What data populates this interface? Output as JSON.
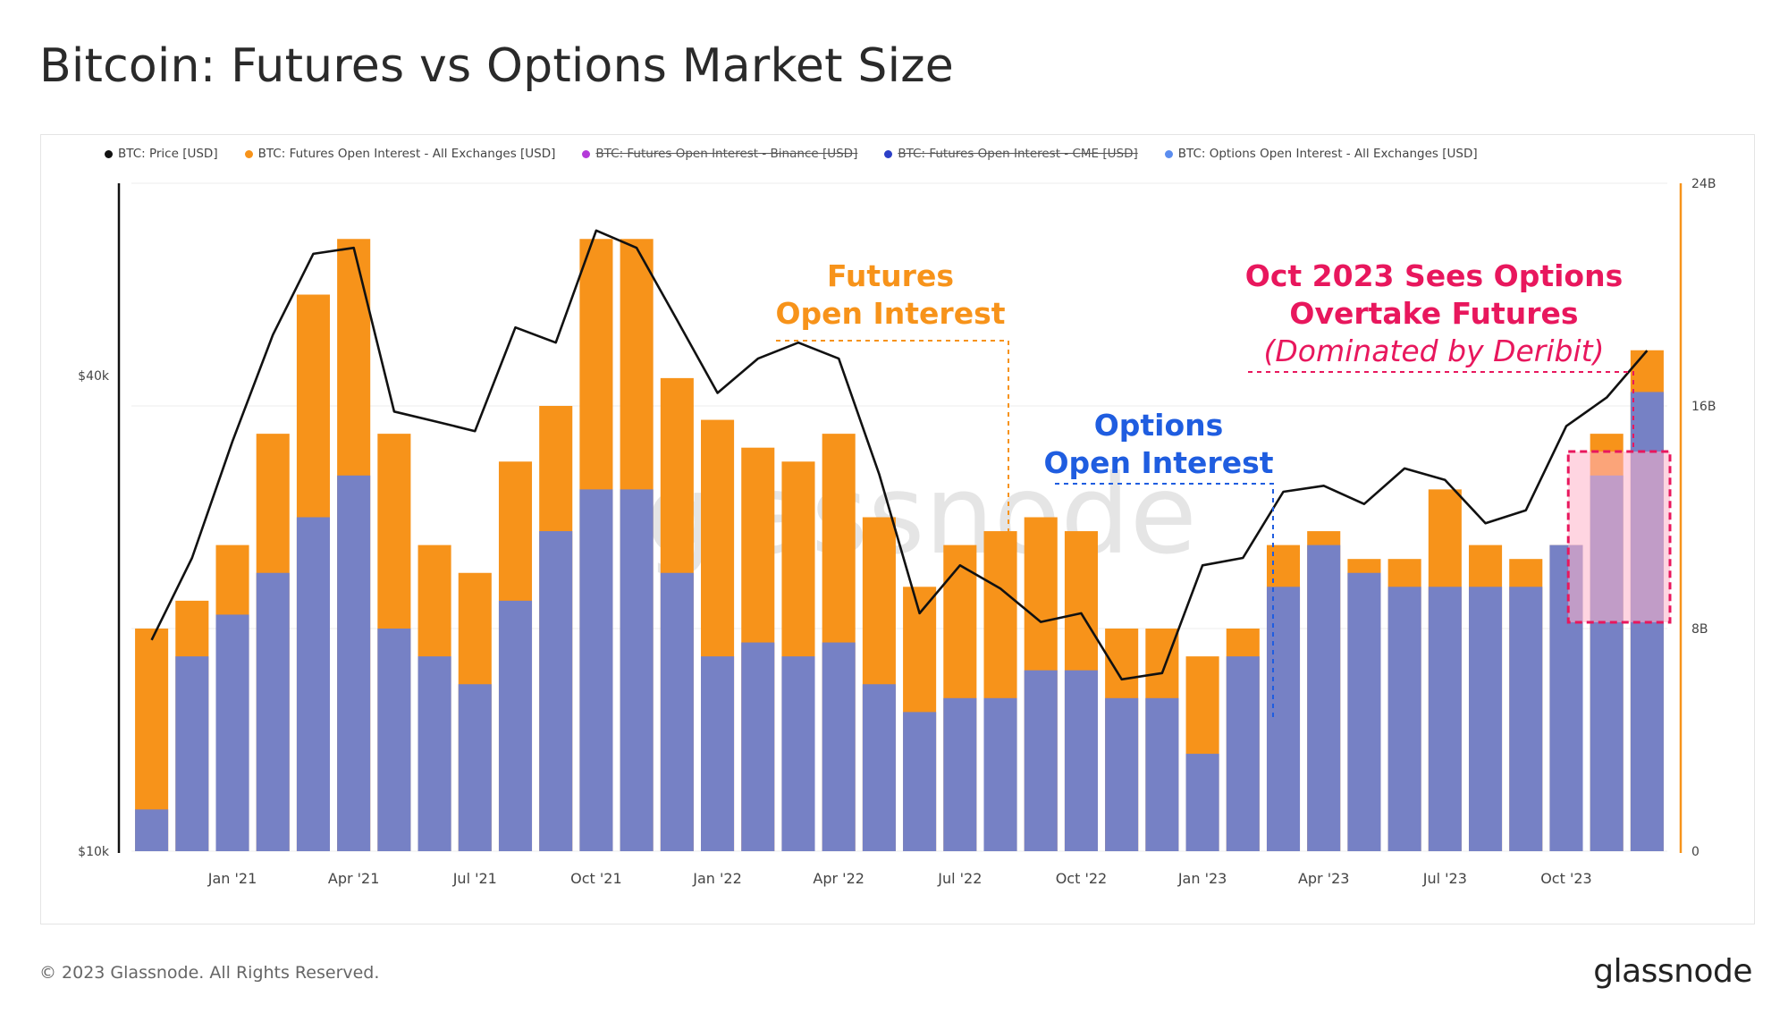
{
  "title": "Bitcoin: Futures vs Options Market Size",
  "legend": [
    {
      "label": "BTC: Price [USD]",
      "color": "#111111",
      "disabled": false
    },
    {
      "label": "BTC: Futures Open Interest - All Exchanges [USD]",
      "color": "#f7931a",
      "disabled": false
    },
    {
      "label": "BTC: Futures Open Interest - Binance [USD]",
      "color": "#b43ad9",
      "disabled": true
    },
    {
      "label": "BTC: Futures Open Interest - CME [USD]",
      "color": "#2b3fc7",
      "disabled": true
    },
    {
      "label": "BTC: Options Open Interest - All Exchanges [USD]",
      "color": "#5b8def",
      "disabled": false
    }
  ],
  "watermark": "glassnode",
  "annotations": {
    "futures_line1": "Futures",
    "futures_line2": "Open Interest",
    "options_line1": "Options",
    "options_line2": "Open Interest",
    "oct_line1": "Oct 2023 Sees Options",
    "oct_line2": "Overtake Futures",
    "oct_line3": "(Dominated by Deribit)"
  },
  "colors": {
    "futures": "#f7931a",
    "options": "#6a7fd4",
    "price": "#111111",
    "annotation_futures": "#f7931a",
    "annotation_options": "#1f5de0",
    "annotation_oct": "#e8175d"
  },
  "footer": {
    "copyright": "© 2023 Glassnode. All Rights Reserved.",
    "logo": "glassnode"
  },
  "chart_data": {
    "type": "bar+line",
    "title": "Bitcoin: Futures vs Options Market Size",
    "x_categories": [
      "Nov '20",
      "Dec '20",
      "Jan '21",
      "Feb '21",
      "Mar '21",
      "Apr '21",
      "May '21",
      "Jun '21",
      "Jul '21",
      "Aug '21",
      "Sep '21",
      "Oct '21",
      "Nov '21",
      "Dec '21",
      "Jan '22",
      "Feb '22",
      "Mar '22",
      "Apr '22",
      "May '22",
      "Jun '22",
      "Jul '22",
      "Aug '22",
      "Sep '22",
      "Oct '22",
      "Nov '22",
      "Dec '22",
      "Jan '23",
      "Feb '23",
      "Mar '23",
      "Apr '23",
      "May '23",
      "Jun '23",
      "Jul '23",
      "Aug '23",
      "Sep '23",
      "Oct '23",
      "Nov '23",
      "Dec '23"
    ],
    "x_tick_labels": [
      {
        "label": "Jan '21",
        "index": 2
      },
      {
        "label": "Apr '21",
        "index": 5
      },
      {
        "label": "Jul '21",
        "index": 8
      },
      {
        "label": "Oct '21",
        "index": 11
      },
      {
        "label": "Jan '22",
        "index": 14
      },
      {
        "label": "Apr '22",
        "index": 17
      },
      {
        "label": "Jul '22",
        "index": 20
      },
      {
        "label": "Oct '22",
        "index": 23
      },
      {
        "label": "Jan '23",
        "index": 26
      },
      {
        "label": "Apr '23",
        "index": 29
      },
      {
        "label": "Jul '23",
        "index": 32
      },
      {
        "label": "Oct '23",
        "index": 35
      }
    ],
    "y_left": {
      "scale": "log",
      "range": [
        10000,
        70000
      ],
      "ticks": [
        {
          "value": 10000,
          "label": "$10k"
        },
        {
          "value": 40000,
          "label": "$40k"
        }
      ]
    },
    "y_right": {
      "scale": "linear",
      "range": [
        0,
        24000000000
      ],
      "ticks": [
        {
          "value": 0,
          "label": "0"
        },
        {
          "value": 8000000000,
          "label": "8B"
        },
        {
          "value": 16000000000,
          "label": "16B"
        },
        {
          "value": 24000000000,
          "label": "24B"
        }
      ]
    },
    "series": [
      {
        "name": "BTC: Futures Open Interest - All Exchanges [USD]",
        "kind": "bar",
        "unit": "USD billions",
        "values": [
          8.0,
          9.0,
          11.0,
          15.0,
          20.0,
          22.0,
          15.0,
          11.0,
          10.0,
          14.0,
          16.0,
          22.0,
          22.0,
          17.0,
          15.5,
          14.5,
          14.0,
          15.0,
          12.0,
          9.5,
          11.0,
          11.5,
          12.0,
          11.5,
          8.0,
          8.0,
          7.0,
          8.0,
          11.0,
          11.5,
          10.5,
          10.5,
          13.0,
          11.0,
          10.5,
          11.0,
          15.0,
          18.0
        ]
      },
      {
        "name": "BTC: Options Open Interest - All Exchanges [USD]",
        "kind": "bar",
        "unit": "USD billions",
        "values": [
          1.5,
          7.0,
          8.5,
          10.0,
          12.0,
          13.5,
          8.0,
          7.0,
          6.0,
          9.0,
          11.5,
          13.0,
          13.0,
          10.0,
          7.0,
          7.5,
          7.0,
          7.5,
          6.0,
          5.0,
          5.5,
          5.5,
          6.5,
          6.5,
          5.5,
          5.5,
          3.5,
          7.0,
          9.5,
          11.0,
          10.0,
          9.5,
          9.5,
          9.5,
          9.5,
          11.0,
          13.5,
          16.5
        ]
      },
      {
        "name": "BTC: Price [USD]",
        "kind": "line",
        "unit": "USD",
        "values": [
          18500,
          23500,
          33000,
          45000,
          57000,
          58000,
          36000,
          35000,
          34000,
          46000,
          44000,
          61000,
          58000,
          47000,
          38000,
          42000,
          44000,
          42000,
          30000,
          20000,
          23000,
          21500,
          19500,
          20000,
          16500,
          16800,
          23000,
          23500,
          28500,
          29000,
          27500,
          30500,
          29500,
          26000,
          27000,
          34500,
          37500,
          43000
        ]
      }
    ],
    "annotations": [
      {
        "text": "Futures Open Interest",
        "points_to": "Futures Open Interest bars"
      },
      {
        "text": "Options Open Interest",
        "points_to": "Options Open Interest bars"
      },
      {
        "text": "Oct 2023 Sees Options Overtake Futures (Dominated by Deribit)",
        "highlight_range": [
          "Oct '23",
          "Dec '23"
        ]
      }
    ]
  }
}
